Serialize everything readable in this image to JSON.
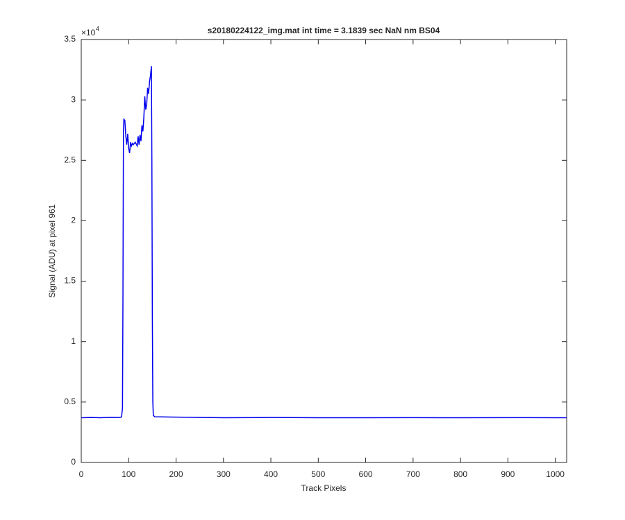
{
  "chart_data": {
    "type": "line",
    "title": "s20180224122_img.mat int time = 3.1839 sec  NaN nm BS04",
    "x_label": "Track Pixels",
    "y_label": "Signal (ADU) at pixel 961",
    "y_exponent_base": "×10",
    "y_exponent": "4",
    "x": [
      0,
      20,
      40,
      60,
      80,
      85,
      87,
      88,
      89,
      90,
      92,
      94,
      96,
      98,
      100,
      102,
      104,
      106,
      108,
      110,
      114,
      118,
      120,
      122,
      124,
      126,
      128,
      130,
      132,
      134,
      136,
      138,
      140,
      142,
      144,
      146,
      148,
      149,
      150,
      151,
      152,
      155,
      200,
      300,
      400,
      500,
      600,
      700,
      800,
      900,
      1000,
      1024
    ],
    "series": [
      {
        "color": "#0000ee",
        "values": [
          3700,
          3720,
          3700,
          3730,
          3720,
          3760,
          4500,
          14000,
          27500,
          28400,
          28300,
          27000,
          26300,
          27200,
          26000,
          25600,
          26500,
          26200,
          26400,
          26300,
          26500,
          26200,
          27000,
          26300,
          27100,
          26600,
          27900,
          27400,
          28500,
          30300,
          29200,
          29600,
          31000,
          30500,
          31500,
          32000,
          32800,
          25000,
          12000,
          5000,
          3900,
          3780,
          3750,
          3700,
          3720,
          3700,
          3700,
          3710,
          3700,
          3710,
          3700,
          3700
        ]
      }
    ],
    "xlim": [
      0,
      1024
    ],
    "xticks": [
      0,
      100,
      200,
      300,
      400,
      500,
      600,
      700,
      800,
      900,
      1000
    ],
    "ylim": [
      0,
      35000
    ],
    "yticks": [
      {
        "value": 0,
        "label": "0"
      },
      {
        "value": 5000,
        "label": "0.5"
      },
      {
        "value": 10000,
        "label": "1"
      },
      {
        "value": 15000,
        "label": "1.5"
      },
      {
        "value": 20000,
        "label": "2"
      },
      {
        "value": 25000,
        "label": "2.5"
      },
      {
        "value": 30000,
        "label": "3"
      },
      {
        "value": 35000,
        "label": "3.5"
      }
    ],
    "grid": false
  }
}
